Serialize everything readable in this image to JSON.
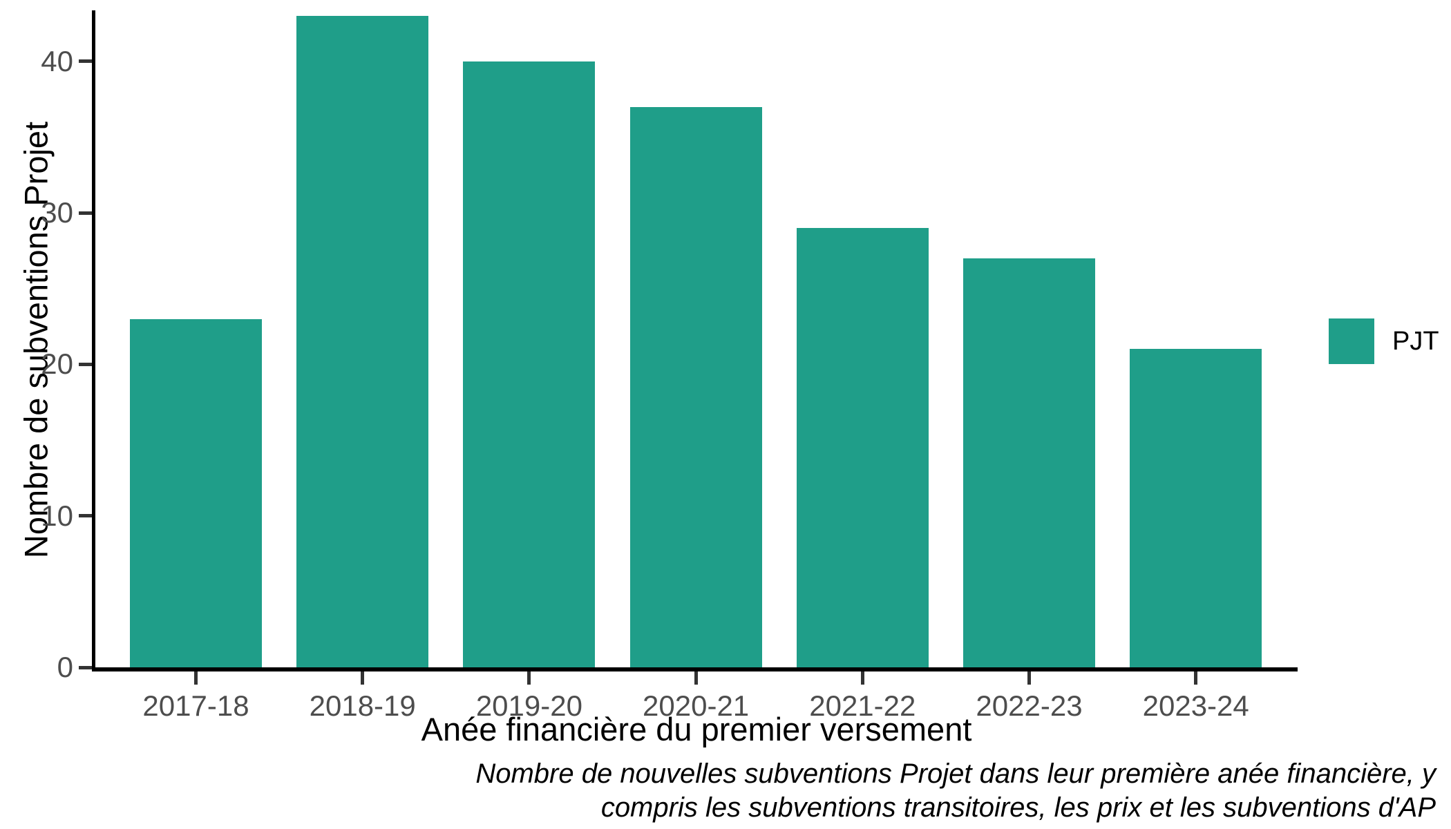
{
  "chart_data": {
    "type": "bar",
    "categories": [
      "2017-18",
      "2018-19",
      "2019-20",
      "2020-21",
      "2021-22",
      "2022-23",
      "2023-24"
    ],
    "series": [
      {
        "name": "PJT",
        "values": [
          23,
          43,
          40,
          37,
          29,
          27,
          21
        ]
      }
    ],
    "title": "",
    "xlabel": "Anée financière du premier versement",
    "ylabel": "Nombre de subventions Projet",
    "ylim": [
      0,
      45
    ],
    "yticks": [
      0,
      10,
      20,
      30,
      40
    ],
    "grid": false,
    "legend_position": "right",
    "bar_color": "#1F9E89",
    "axis_line_color": "#000000",
    "tick_label_color": "#4D4D4D"
  },
  "caption": {
    "line1": "Nombre de nouvelles subventions Projet dans leur première anée financière, y",
    "line2": "compris les subventions transitoires, les prix et les subventions d'AP"
  },
  "legend": {
    "label": "PJT"
  }
}
